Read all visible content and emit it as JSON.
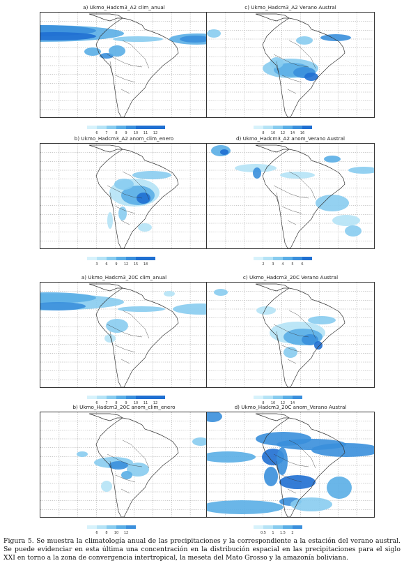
{
  "panels": [
    {
      "title": "a)  Ukmo_Hadcm3_A2  clim_anual",
      "ticks": [
        "6",
        "7",
        "8",
        "9",
        "10",
        "11",
        "12"
      ]
    },
    {
      "title": "c)  Ukmo_Hadcm3_A2  Verano Austral",
      "ticks": [
        "8",
        "10",
        "12",
        "14",
        "16"
      ]
    },
    {
      "title": "b)  Ukmo_Hadcm3_A2  anom_clim_enero",
      "ticks": [
        "3",
        "6",
        "9",
        "12",
        "15",
        "18"
      ]
    },
    {
      "title": "d)  Ukmo_Hadcm3_A2  anom_Verano Austral",
      "ticks": [
        "2",
        "3",
        "4",
        "5",
        "6"
      ]
    },
    {
      "title": "a)  Ukmo_Hadcm3_20C  clim_anual",
      "ticks": [
        "6",
        "7",
        "8",
        "9",
        "10",
        "11",
        "12"
      ]
    },
    {
      "title": "c)  Ukmo_Hadcm3_20C  Verano Austral",
      "ticks": [
        "8",
        "10",
        "12",
        "14"
      ]
    },
    {
      "title": "b)  Ukmo_Hadcm3_20C  anom_clim_enero",
      "ticks": [
        "6",
        "8",
        "10",
        "12"
      ]
    },
    {
      "title": "d)  Ukmo_Hadcm3_20C  anom_Verano Austral",
      "ticks": [
        "0.5",
        "1",
        "1.5",
        "2"
      ]
    }
  ],
  "colors": [
    "#d7f2fb",
    "#b5e3f6",
    "#88ccef",
    "#5aaee6",
    "#3a8fdc",
    "#1f6fd1"
  ],
  "caption": "Figura 5. Se muestra la climatología anual de las precipitaciones y la correspondiente a la estación del verano austral. Se puede evidenciar en esta última una concentración en la distribución espacial en las precipitaciones para el siglo XXI en torno a la zona de convergencia intertropical, la meseta del Mato Grosso y la amazonía boliviana."
}
